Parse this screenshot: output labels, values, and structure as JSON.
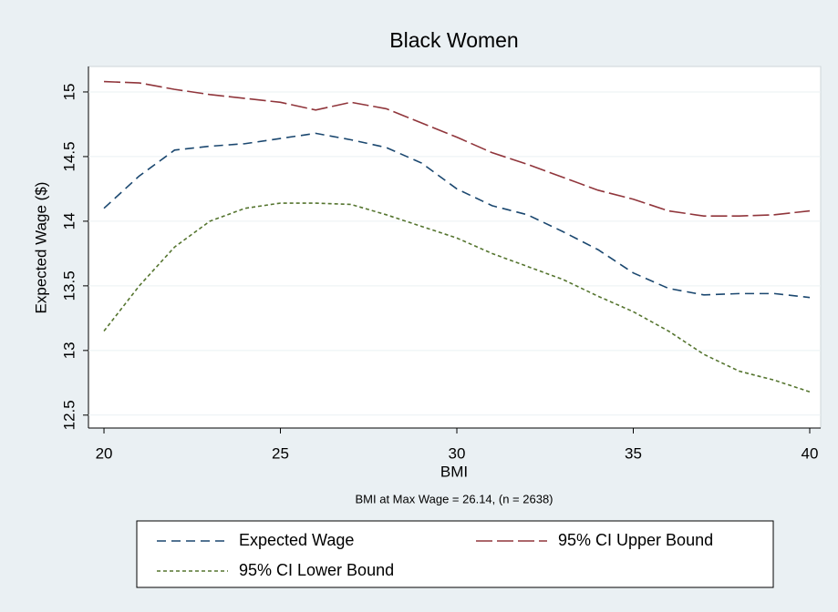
{
  "chart_data": {
    "type": "line",
    "title": "Black Women",
    "x_label": "BMI",
    "y_label": "Expected Wage ($)",
    "note": "BMI at Max Wage = 26.14, (n = 2638)",
    "x": [
      20,
      21,
      22,
      23,
      24,
      25,
      26,
      27,
      28,
      29,
      30,
      31,
      32,
      33,
      34,
      35,
      36,
      37,
      38,
      39,
      40
    ],
    "series": [
      {
        "name": "Expected Wage",
        "color": "#1a476f",
        "dash": "10,6",
        "values": [
          14.1,
          14.35,
          14.55,
          14.58,
          14.6,
          14.64,
          14.68,
          14.63,
          14.57,
          14.45,
          14.25,
          14.12,
          14.05,
          13.92,
          13.78,
          13.6,
          13.48,
          13.43,
          13.44,
          13.44,
          13.41
        ]
      },
      {
        "name": "95% CI Upper Bound",
        "color": "#90353b",
        "dash": "18,5",
        "values": [
          15.08,
          15.07,
          15.02,
          14.98,
          14.95,
          14.92,
          14.86,
          14.92,
          14.87,
          14.76,
          14.65,
          14.53,
          14.44,
          14.34,
          14.24,
          14.17,
          14.08,
          14.04,
          14.04,
          14.05,
          14.08
        ]
      },
      {
        "name": "95% CI Lower Bound",
        "color": "#55752f",
        "dash": "4,3",
        "values": [
          13.15,
          13.5,
          13.8,
          14.0,
          14.1,
          14.14,
          14.14,
          14.13,
          14.05,
          13.96,
          13.87,
          13.75,
          13.65,
          13.55,
          13.42,
          13.3,
          13.15,
          12.97,
          12.84,
          12.77,
          12.68
        ]
      }
    ],
    "xlim": [
      19.56,
      40.31
    ],
    "ylim": [
      12.4,
      15.197
    ],
    "xticks": [
      20,
      25,
      30,
      35,
      40
    ],
    "yticks": [
      12.5,
      13,
      13.5,
      14,
      14.5,
      15
    ],
    "grid": true,
    "legend": "bottom"
  }
}
